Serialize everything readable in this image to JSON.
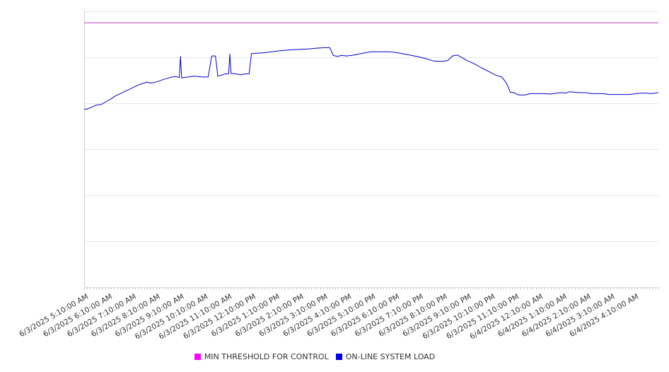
{
  "chart_data": {
    "type": "line",
    "grid": true,
    "legend_position": "bottom",
    "ylim": [
      0,
      6
    ],
    "x": [
      "6/3/2025 5:10:00 AM",
      "6/3/2025 6:10:00 AM",
      "6/3/2025 7:10:00 AM",
      "6/3/2025 8:10:00 AM",
      "6/3/2025 9:10:00 AM",
      "6/3/2025 10:10:00 AM",
      "6/3/2025 11:10:00 AM",
      "6/3/2025 12:10:00 PM",
      "6/3/2025 1:10:00 PM",
      "6/3/2025 2:10:00 PM",
      "6/3/2025 3:10:00 PM",
      "6/3/2025 4:10:00 PM",
      "6/3/2025 5:10:00 PM",
      "6/3/2025 6:10:00 PM",
      "6/3/2025 7:10:00 PM",
      "6/3/2025 8:10:00 PM",
      "6/3/2025 9:10:00 PM",
      "6/3/2025 10:10:00 PM",
      "6/3/2025 11:10:00 PM",
      "6/4/2025 12:10:00 AM",
      "6/4/2025 1:10:00 AM",
      "6/4/2025 2:10:00 AM",
      "6/4/2025 3:10:00 AM",
      "6/4/2025 4:10:00 AM"
    ],
    "series": [
      {
        "name": "MIN THRESHOLD FOR CONTROL",
        "color": "#c040c0",
        "points": [
          [
            0,
            5.75
          ],
          [
            23.85,
            5.75
          ]
        ]
      },
      {
        "name": "ON-LINE SYSTEM LOAD",
        "color": "#0000cc",
        "points": [
          [
            0,
            3.87
          ],
          [
            0.1,
            3.87
          ],
          [
            0.3,
            3.91
          ],
          [
            0.5,
            3.96
          ],
          [
            0.7,
            3.97
          ],
          [
            0.9,
            4.03
          ],
          [
            1.1,
            4.09
          ],
          [
            1.3,
            4.16
          ],
          [
            1.5,
            4.21
          ],
          [
            1.7,
            4.26
          ],
          [
            1.9,
            4.31
          ],
          [
            2.1,
            4.36
          ],
          [
            2.3,
            4.41
          ],
          [
            2.5,
            4.44
          ],
          [
            2.6,
            4.46
          ],
          [
            2.75,
            4.44
          ],
          [
            2.9,
            4.45
          ],
          [
            3.1,
            4.48
          ],
          [
            3.3,
            4.52
          ],
          [
            3.5,
            4.55
          ],
          [
            3.65,
            4.57
          ],
          [
            3.8,
            4.58
          ],
          [
            3.95,
            4.56
          ],
          [
            4.0,
            5.02
          ],
          [
            4.05,
            4.55
          ],
          [
            4.3,
            4.57
          ],
          [
            4.6,
            4.59
          ],
          [
            4.9,
            4.57
          ],
          [
            5.15,
            4.57
          ],
          [
            5.3,
            5.03
          ],
          [
            5.45,
            5.03
          ],
          [
            5.55,
            4.59
          ],
          [
            5.7,
            4.61
          ],
          [
            5.85,
            4.64
          ],
          [
            6.0,
            4.64
          ],
          [
            6.05,
            5.07
          ],
          [
            6.1,
            4.65
          ],
          [
            6.3,
            4.64
          ],
          [
            6.5,
            4.62
          ],
          [
            6.7,
            4.64
          ],
          [
            6.85,
            4.64
          ],
          [
            6.95,
            5.08
          ],
          [
            7.2,
            5.09
          ],
          [
            7.5,
            5.1
          ],
          [
            7.8,
            5.12
          ],
          [
            8.1,
            5.14
          ],
          [
            8.5,
            5.16
          ],
          [
            8.9,
            5.17
          ],
          [
            9.3,
            5.18
          ],
          [
            9.7,
            5.2
          ],
          [
            10.0,
            5.21
          ],
          [
            10.2,
            5.21
          ],
          [
            10.35,
            5.04
          ],
          [
            10.5,
            5.02
          ],
          [
            10.7,
            5.04
          ],
          [
            10.9,
            5.03
          ],
          [
            11.1,
            5.04
          ],
          [
            11.3,
            5.06
          ],
          [
            11.5,
            5.08
          ],
          [
            11.7,
            5.1
          ],
          [
            11.9,
            5.12
          ],
          [
            12.1,
            5.12
          ],
          [
            12.4,
            5.12
          ],
          [
            12.7,
            5.12
          ],
          [
            13.0,
            5.1
          ],
          [
            13.3,
            5.07
          ],
          [
            13.6,
            5.04
          ],
          [
            13.9,
            5.01
          ],
          [
            14.2,
            4.97
          ],
          [
            14.5,
            4.92
          ],
          [
            14.7,
            4.91
          ],
          [
            14.9,
            4.91
          ],
          [
            15.1,
            4.93
          ],
          [
            15.3,
            5.03
          ],
          [
            15.5,
            5.05
          ],
          [
            15.7,
            4.99
          ],
          [
            15.9,
            4.93
          ],
          [
            16.2,
            4.86
          ],
          [
            16.5,
            4.77
          ],
          [
            16.8,
            4.69
          ],
          [
            17.1,
            4.61
          ],
          [
            17.35,
            4.57
          ],
          [
            17.55,
            4.43
          ],
          [
            17.7,
            4.24
          ],
          [
            17.85,
            4.23
          ],
          [
            18.05,
            4.18
          ],
          [
            18.3,
            4.18
          ],
          [
            18.55,
            4.21
          ],
          [
            18.8,
            4.21
          ],
          [
            19.1,
            4.21
          ],
          [
            19.35,
            4.2
          ],
          [
            19.6,
            4.22
          ],
          [
            19.8,
            4.23
          ],
          [
            20.0,
            4.22
          ],
          [
            20.15,
            4.25
          ],
          [
            20.35,
            4.24
          ],
          [
            20.6,
            4.23
          ],
          [
            20.85,
            4.23
          ],
          [
            21.05,
            4.21
          ],
          [
            21.3,
            4.21
          ],
          [
            21.55,
            4.21
          ],
          [
            21.8,
            4.19
          ],
          [
            22.1,
            4.19
          ],
          [
            22.4,
            4.19
          ],
          [
            22.65,
            4.19
          ],
          [
            22.9,
            4.21
          ],
          [
            23.1,
            4.22
          ],
          [
            23.35,
            4.22
          ],
          [
            23.55,
            4.21
          ],
          [
            23.85,
            4.23
          ]
        ]
      }
    ]
  }
}
